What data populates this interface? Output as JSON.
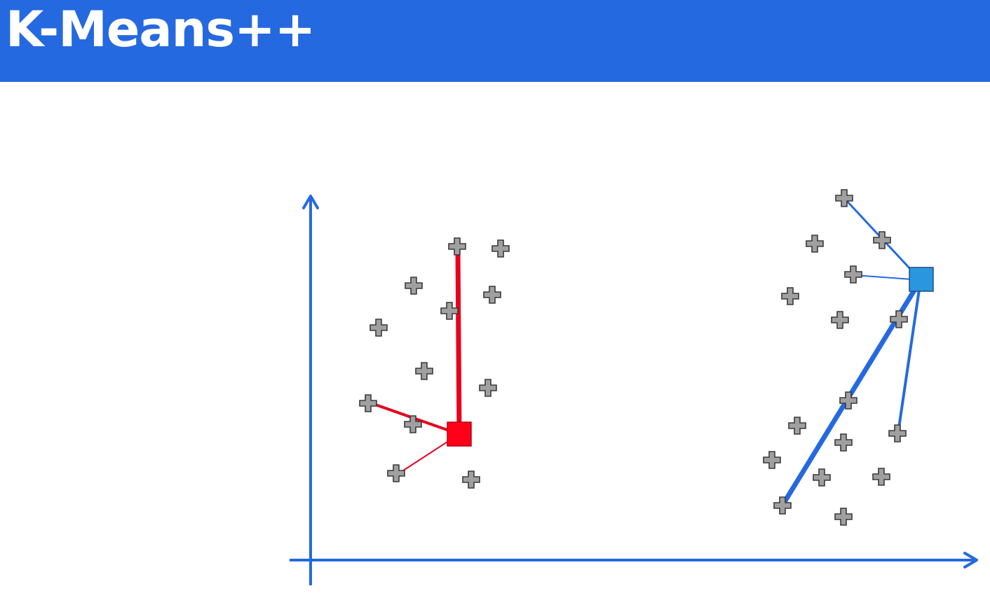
{
  "header": {
    "title": "K-Means++",
    "background": "#2569e0",
    "text_color": "#ffffff"
  },
  "colors": {
    "axis": "#2569e0",
    "point_fill": "#a0a0a0",
    "point_stroke": "#3a3a3a",
    "red_centroid": "#ff0018",
    "red_line": "#e8001d",
    "blue_centroid": "#2a96e0",
    "blue_line": "#2569e0"
  },
  "icons": {
    "data_point": "plus-icon",
    "centroid": "square-icon"
  },
  "centroids": [
    {
      "name": "red-centroid",
      "color": "red_centroid",
      "cluster": "left"
    },
    {
      "name": "blue-centroid",
      "color": "blue_centroid",
      "cluster": "right"
    }
  ]
}
